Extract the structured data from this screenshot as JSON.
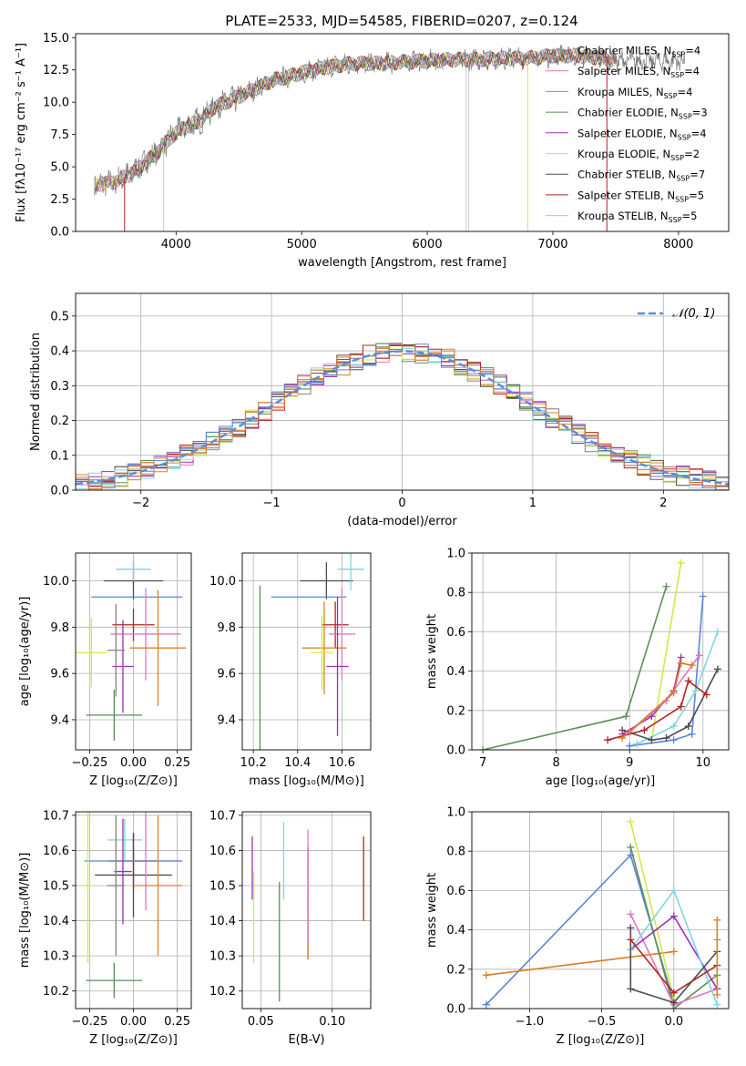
{
  "title": "PLATE=2533, MJD=54585, FIBERID=0207, z=0.124",
  "colors": {
    "Chabrier MILES": "#808080",
    "Salpeter MILES": "#e377c2",
    "Kroupa MILES": "#d9822b",
    "Chabrier ELODIE": "#5a8f5a",
    "Salpeter ELODIE": "#9b30b0",
    "Kroupa ELODIE": "#d4e84a",
    "Chabrier STELIB": "#4d4d4d",
    "Salpeter STELIB": "#b22222",
    "Kroupa STELIB": "#7ed6df",
    "extra_blue": "#5b84d6",
    "extra_orange": "#e07a1f",
    "normal": "#5b8ed6"
  },
  "chart_data": [
    {
      "id": "spectrum",
      "type": "line",
      "xlabel": "wavelength [Angstrom, rest frame]",
      "ylabel": "Flux [fλ10⁻¹⁷ erg cm⁻² s⁻¹ A⁻¹]",
      "xlim": [
        3200,
        8400
      ],
      "ylim": [
        0,
        15.3
      ],
      "xticks": [
        "4000",
        "5000",
        "6000",
        "7000",
        "8000"
      ],
      "yticks": [
        "0.0",
        "2.5",
        "5.0",
        "7.5",
        "10.0",
        "12.5",
        "15.0"
      ],
      "legend": [
        {
          "name": "Chabrier MILES",
          "nssp": "4"
        },
        {
          "name": "Salpeter MILES",
          "nssp": "4"
        },
        {
          "name": "Kroupa MILES",
          "nssp": "4"
        },
        {
          "name": "Chabrier ELODIE",
          "nssp": "3"
        },
        {
          "name": "Salpeter ELODIE",
          "nssp": "4"
        },
        {
          "name": "Kroupa ELODIE",
          "nssp": "2"
        },
        {
          "name": "Chabrier STELIB",
          "nssp": "7"
        },
        {
          "name": "Salpeter STELIB",
          "nssp": "5"
        },
        {
          "name": "Kroupa STELIB",
          "nssp": "5"
        }
      ],
      "legend_prefix": "N",
      "legend_sub": "SSP",
      "continuum": [
        [
          3350,
          3.6
        ],
        [
          3500,
          3.8
        ],
        [
          3650,
          4.5
        ],
        [
          3750,
          5.3
        ],
        [
          3850,
          6.1
        ],
        [
          3950,
          7.2
        ],
        [
          4050,
          8.0
        ],
        [
          4200,
          8.6
        ],
        [
          4300,
          9.6
        ],
        [
          4450,
          10.2
        ],
        [
          4600,
          10.9
        ],
        [
          4750,
          11.6
        ],
        [
          4900,
          12.0
        ],
        [
          5050,
          12.4
        ],
        [
          5200,
          12.7
        ],
        [
          5400,
          13.0
        ],
        [
          5600,
          13.0
        ],
        [
          5800,
          13.1
        ],
        [
          6000,
          13.2
        ],
        [
          6200,
          13.3
        ],
        [
          6400,
          13.3
        ],
        [
          6600,
          13.4
        ],
        [
          6800,
          13.4
        ],
        [
          7000,
          13.6
        ],
        [
          7200,
          13.6
        ],
        [
          7400,
          13.4
        ],
        [
          7500,
          13.2
        ]
      ],
      "spectrum_range": [
        3350,
        8050
      ],
      "dips": [
        {
          "x": 3590,
          "series": "Salpeter STELIB"
        },
        {
          "x": 3900,
          "series": "Kroupa ELODIE"
        },
        {
          "x": 6800,
          "series": "Kroupa ELODIE"
        },
        {
          "x": 7430,
          "series": "Salpeter STELIB"
        }
      ]
    },
    {
      "id": "residuals",
      "type": "histogram",
      "xlabel": "(data-model)/error",
      "ylabel": "Normed distribution",
      "xlim": [
        -2.5,
        2.5
      ],
      "ylim": [
        0,
        0.565
      ],
      "xticks": [
        "−2",
        "−1",
        "0",
        "1",
        "2"
      ],
      "yticks": [
        "0.0",
        "0.1",
        "0.2",
        "0.3",
        "0.4",
        "0.5"
      ],
      "legend": [
        "𝒩(0, 1)"
      ],
      "bin_width": 0.1
    },
    {
      "id": "age_Z",
      "type": "errorbar",
      "xlabel": "Z [log₁₀(Z/Z⊙)]",
      "ylabel": "age  [log₁₀(age/yr)]",
      "xlim": [
        -0.33,
        0.33
      ],
      "ylim": [
        9.27,
        10.12
      ],
      "xticks": [
        "−0.25",
        "0.00",
        "0.25"
      ],
      "yticks": [
        "9.4",
        "9.6",
        "9.8",
        "10.0"
      ],
      "points": [
        {
          "c": "Chabrier STELIB",
          "x": 0.0,
          "y": 10.0,
          "dx": 0.17,
          "dy": 0.08
        },
        {
          "c": "Kroupa STELIB",
          "x": 0.0,
          "y": 10.05,
          "dx": 0.1,
          "dy": 0.05
        },
        {
          "c": "extra_blue",
          "x": 0.02,
          "y": 9.93,
          "dx": 0.26,
          "dy": 0.0
        },
        {
          "c": "Salpeter STELIB",
          "x": 0.0,
          "y": 9.81,
          "dx": 0.12,
          "dy": 0.07
        },
        {
          "c": "Salpeter MILES",
          "x": 0.07,
          "y": 9.77,
          "dx": 0.2,
          "dy": 0.2
        },
        {
          "c": "Kroupa MILES",
          "x": 0.14,
          "y": 9.71,
          "dx": 0.16,
          "dy": 0.25
        },
        {
          "c": "Kroupa ELODIE",
          "x": -0.24,
          "y": 9.69,
          "dx": 0.09,
          "dy": 0.15
        },
        {
          "c": "Salpeter ELODIE",
          "x": -0.06,
          "y": 9.63,
          "dx": 0.06,
          "dy": 0.2
        },
        {
          "c": "Chabrier ELODIE",
          "x": -0.11,
          "y": 9.42,
          "dx": 0.16,
          "dy": 0.11
        },
        {
          "c": "Chabrier MILES",
          "x": -0.1,
          "y": 9.7,
          "dx": 0.05,
          "dy": 0.2
        }
      ]
    },
    {
      "id": "age_mass",
      "type": "errorbar",
      "xlabel": "mass [log₁₀(M/M⊙)]",
      "ylabel": "",
      "xlim": [
        10.15,
        10.73
      ],
      "ylim": [
        9.27,
        10.12
      ],
      "xticks": [
        "10.2",
        "10.4",
        "10.6"
      ],
      "yticks": [
        "9.4",
        "9.6",
        "9.8",
        "10.0"
      ],
      "points": [
        {
          "c": "Chabrier STELIB",
          "x": 10.53,
          "y": 10.0,
          "dx": 0.12,
          "dy": 0.08
        },
        {
          "c": "Kroupa STELIB",
          "x": 10.64,
          "y": 10.05,
          "dx": 0.06,
          "dy": 0.09
        },
        {
          "c": "extra_blue",
          "x": 10.45,
          "y": 9.93,
          "dx": 0.17,
          "dy": 0.0
        },
        {
          "c": "Salpeter STELIB",
          "x": 10.57,
          "y": 9.81,
          "dx": 0.06,
          "dy": 0.1
        },
        {
          "c": "Salpeter MILES",
          "x": 10.6,
          "y": 9.77,
          "dx": 0.06,
          "dy": 0.2
        },
        {
          "c": "Kroupa MILES",
          "x": 10.52,
          "y": 9.71,
          "dx": 0.1,
          "dy": 0.2
        },
        {
          "c": "Kroupa ELODIE",
          "x": 10.51,
          "y": 9.69,
          "dx": 0.05,
          "dy": 0.16
        },
        {
          "c": "Salpeter ELODIE",
          "x": 10.58,
          "y": 9.63,
          "dx": 0.05,
          "dy": 0.3
        },
        {
          "c": "Chabrier ELODIE",
          "x": 10.23,
          "y": 9.42,
          "dx": 0.0,
          "dy": 0.56
        }
      ]
    },
    {
      "id": "weight_age",
      "type": "line",
      "xlabel": "age  [log₁₀(age/yr)]",
      "ylabel": "mass weight",
      "xlim": [
        6.85,
        10.35
      ],
      "ylim": [
        0,
        1
      ],
      "xticks": [
        "7",
        "8",
        "9",
        "10"
      ],
      "yticks": [
        "0.0",
        "0.2",
        "0.4",
        "0.6",
        "0.8",
        "1.0"
      ],
      "series": [
        {
          "c": "Chabrier ELODIE",
          "pts": [
            [
              7.0,
              0.0
            ],
            [
              8.95,
              0.17
            ],
            [
              9.5,
              0.83
            ]
          ]
        },
        {
          "c": "Kroupa ELODIE",
          "pts": [
            [
              9.3,
              0.05
            ],
            [
              9.7,
              0.95
            ]
          ]
        },
        {
          "c": "extra_blue",
          "pts": [
            [
              9.0,
              0.02
            ],
            [
              9.6,
              0.05
            ],
            [
              9.85,
              0.08
            ],
            [
              10.0,
              0.78
            ]
          ]
        },
        {
          "c": "Kroupa STELIB",
          "pts": [
            [
              9.1,
              0.03
            ],
            [
              9.6,
              0.12
            ],
            [
              9.9,
              0.3
            ],
            [
              10.2,
              0.6
            ]
          ]
        },
        {
          "c": "Chabrier STELIB",
          "pts": [
            [
              8.9,
              0.1
            ],
            [
              9.3,
              0.05
            ],
            [
              9.5,
              0.06
            ],
            [
              9.8,
              0.12
            ],
            [
              10.2,
              0.41
            ]
          ]
        },
        {
          "c": "Salpeter STELIB",
          "pts": [
            [
              8.7,
              0.05
            ],
            [
              9.2,
              0.1
            ],
            [
              9.7,
              0.22
            ],
            [
              9.8,
              0.35
            ],
            [
              10.05,
              0.28
            ]
          ]
        },
        {
          "c": "Salpeter ELODIE",
          "pts": [
            [
              8.9,
              0.08
            ],
            [
              9.3,
              0.17
            ],
            [
              9.6,
              0.3
            ],
            [
              9.7,
              0.47
            ]
          ]
        },
        {
          "c": "Salpeter MILES",
          "pts": [
            [
              9.0,
              0.09
            ],
            [
              9.5,
              0.25
            ],
            [
              9.95,
              0.48
            ]
          ]
        },
        {
          "c": "extra_orange",
          "pts": [
            [
              8.9,
              0.06
            ],
            [
              9.6,
              0.29
            ],
            [
              9.7,
              0.44
            ],
            [
              9.85,
              0.43
            ]
          ]
        }
      ]
    },
    {
      "id": "mass_Z",
      "type": "errorbar",
      "xlabel": "Z [log₁₀(Z/Z⊙)]",
      "ylabel": "mass [log₁₀(M/M⊙)]",
      "xlim": [
        -0.33,
        0.33
      ],
      "ylim": [
        10.15,
        10.71
      ],
      "xticks": [
        "−0.25",
        "0.00",
        "0.25"
      ],
      "yticks": [
        "10.2",
        "10.3",
        "10.4",
        "10.5",
        "10.6",
        "10.7"
      ],
      "points": [
        {
          "c": "Kroupa STELIB",
          "x": -0.05,
          "y": 10.63,
          "dx": 0.1,
          "dy": 0.06
        },
        {
          "c": "Chabrier STELIB",
          "x": 0.0,
          "y": 10.53,
          "dx": 0.22,
          "dy": 0.12
        },
        {
          "c": "Salpeter STELIB",
          "x": 0.0,
          "y": 10.57,
          "dx": 0.14,
          "dy": 0.08
        },
        {
          "c": "Salpeter MILES",
          "x": 0.07,
          "y": 10.57,
          "dx": 0.2,
          "dy": 0.14
        },
        {
          "c": "extra_blue",
          "x": 0.0,
          "y": 10.57,
          "dx": 0.28,
          "dy": 0.0
        },
        {
          "c": "Kroupa MILES",
          "x": 0.14,
          "y": 10.5,
          "dx": 0.14,
          "dy": 0.2
        },
        {
          "c": "Kroupa ELODIE",
          "x": -0.26,
          "y": 10.5,
          "dx": 0.04,
          "dy": 0.22
        },
        {
          "c": "Salpeter ELODIE",
          "x": -0.06,
          "y": 10.54,
          "dx": 0.05,
          "dy": 0.15
        },
        {
          "c": "Chabrier ELODIE",
          "x": -0.11,
          "y": 10.23,
          "dx": 0.16,
          "dy": 0.05
        },
        {
          "c": "Chabrier MILES",
          "x": -0.1,
          "y": 10.5,
          "dx": 0.05,
          "dy": 0.2
        }
      ]
    },
    {
      "id": "mass_ebv",
      "type": "errorbar",
      "xlabel": "E(B-V)",
      "ylabel": "",
      "xlim": [
        0.037,
        0.127
      ],
      "ylim": [
        10.15,
        10.71
      ],
      "xticks": [
        "0.05",
        "0.10"
      ],
      "yticks": [
        "10.2",
        "10.3",
        "10.4",
        "10.5",
        "10.6",
        "10.7"
      ],
      "points": [
        {
          "c": "Salpeter ELODIE",
          "x": 0.044,
          "y": 10.55,
          "dx": 0,
          "dy": 0.09
        },
        {
          "c": "Kroupa ELODIE",
          "x": 0.045,
          "y": 10.41,
          "dx": 0,
          "dy": 0.13
        },
        {
          "c": "Chabrier ELODIE",
          "x": 0.063,
          "y": 10.34,
          "dx": 0,
          "dy": 0.17
        },
        {
          "c": "Kroupa STELIB",
          "x": 0.066,
          "y": 10.57,
          "dx": 0,
          "dy": 0.11
        },
        {
          "c": "extra_blue",
          "x": 0.083,
          "y": 10.45,
          "dx": 0,
          "dy": 0.16
        },
        {
          "c": "Kroupa MILES",
          "x": 0.083,
          "y": 10.45,
          "dx": 0,
          "dy": 0.16
        },
        {
          "c": "Salpeter MILES",
          "x": 0.083,
          "y": 10.5,
          "dx": 0,
          "dy": 0.16
        },
        {
          "c": "Salpeter STELIB",
          "x": 0.122,
          "y": 10.52,
          "dx": 0,
          "dy": 0.12
        }
      ]
    },
    {
      "id": "weight_Z",
      "type": "line",
      "xlabel": "Z [log₁₀(Z/Z⊙)]",
      "ylabel": "mass weight",
      "xlim": [
        -1.4,
        0.38
      ],
      "ylim": [
        0,
        1
      ],
      "xticks": [
        "−1.0",
        "−0.5",
        "0.0"
      ],
      "yticks": [
        "0.0",
        "0.2",
        "0.4",
        "0.6",
        "0.8",
        "1.0"
      ],
      "series": [
        {
          "c": "extra_blue",
          "pts": [
            [
              -1.3,
              0.02
            ],
            [
              -0.3,
              0.78
            ],
            [
              0.0,
              0.03
            ]
          ]
        },
        {
          "c": "extra_orange",
          "pts": [
            [
              -1.3,
              0.17
            ],
            [
              0.0,
              0.29
            ]
          ]
        },
        {
          "c": "Kroupa ELODIE",
          "pts": [
            [
              -0.3,
              0.95
            ],
            [
              0.0,
              0.05
            ]
          ]
        },
        {
          "c": "Chabrier ELODIE",
          "pts": [
            [
              -0.3,
              0.82
            ],
            [
              0.0,
              0.0
            ],
            [
              0.3,
              0.17
            ]
          ]
        },
        {
          "c": "Salpeter MILES",
          "pts": [
            [
              -0.3,
              0.48
            ],
            [
              0.0,
              0.02
            ],
            [
              0.3,
              0.1
            ]
          ]
        },
        {
          "c": "Salpeter ELODIE",
          "pts": [
            [
              -0.3,
              0.3
            ],
            [
              0.0,
              0.47
            ],
            [
              0.3,
              0.1
            ]
          ]
        },
        {
          "c": "Kroupa STELIB",
          "pts": [
            [
              -0.3,
              0.3
            ],
            [
              0.0,
              0.6
            ],
            [
              0.3,
              0.02
            ]
          ]
        },
        {
          "c": "Chabrier STELIB",
          "pts": [
            [
              -0.3,
              0.41
            ],
            [
              -0.3,
              0.1
            ],
            [
              0.0,
              0.03
            ],
            [
              0.3,
              0.29
            ]
          ]
        },
        {
          "c": "Salpeter STELIB",
          "pts": [
            [
              -0.3,
              0.35
            ],
            [
              0.0,
              0.08
            ],
            [
              0.3,
              0.22
            ]
          ]
        },
        {
          "c": "Kroupa MILES",
          "pts": [
            [
              0.3,
              0.45
            ],
            [
              0.3,
              0.35
            ],
            [
              0.3,
              0.07
            ]
          ]
        }
      ]
    }
  ]
}
